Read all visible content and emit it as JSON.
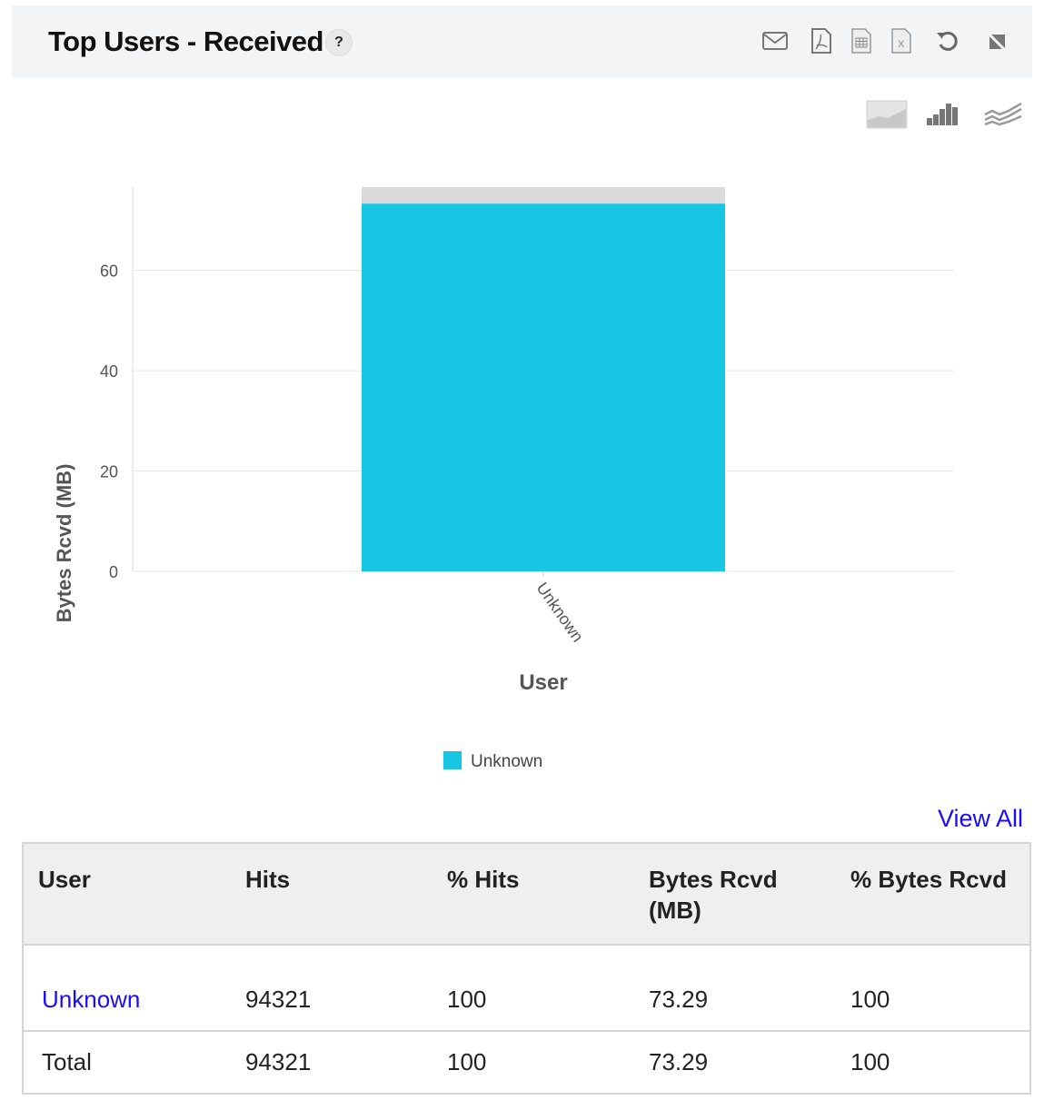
{
  "header": {
    "title": "Top Users - Received",
    "help": "?",
    "icons": [
      "mail-icon",
      "pdf-icon",
      "csv-icon",
      "excel-icon",
      "refresh-icon",
      "collapse-icon"
    ]
  },
  "chart_types": [
    "area-chart-icon",
    "bar-chart-icon",
    "line-chart-icon"
  ],
  "chart_data": {
    "type": "bar",
    "categories": [
      "Unknown"
    ],
    "series": [
      {
        "name": "Unknown",
        "values": [
          73.29
        ]
      }
    ],
    "xlabel": "User",
    "ylabel": "Bytes Rcvd (MB)",
    "yticks": [
      0,
      20,
      40,
      60
    ],
    "ylim": [
      0,
      76.6
    ],
    "grid": true,
    "legend": "bottom-center",
    "colors": {
      "bar": "#17c6e2",
      "bar_background": "#dadada"
    }
  },
  "view_all": "View All",
  "table": {
    "headers": [
      "User",
      "Hits",
      "% Hits",
      "Bytes Rcvd (MB)",
      "% Bytes Rcvd"
    ],
    "rows": [
      [
        "Unknown",
        "94321",
        "100",
        "73.29",
        "100"
      ]
    ],
    "total": [
      "Total",
      "94321",
      "100",
      "73.29",
      "100"
    ]
  }
}
